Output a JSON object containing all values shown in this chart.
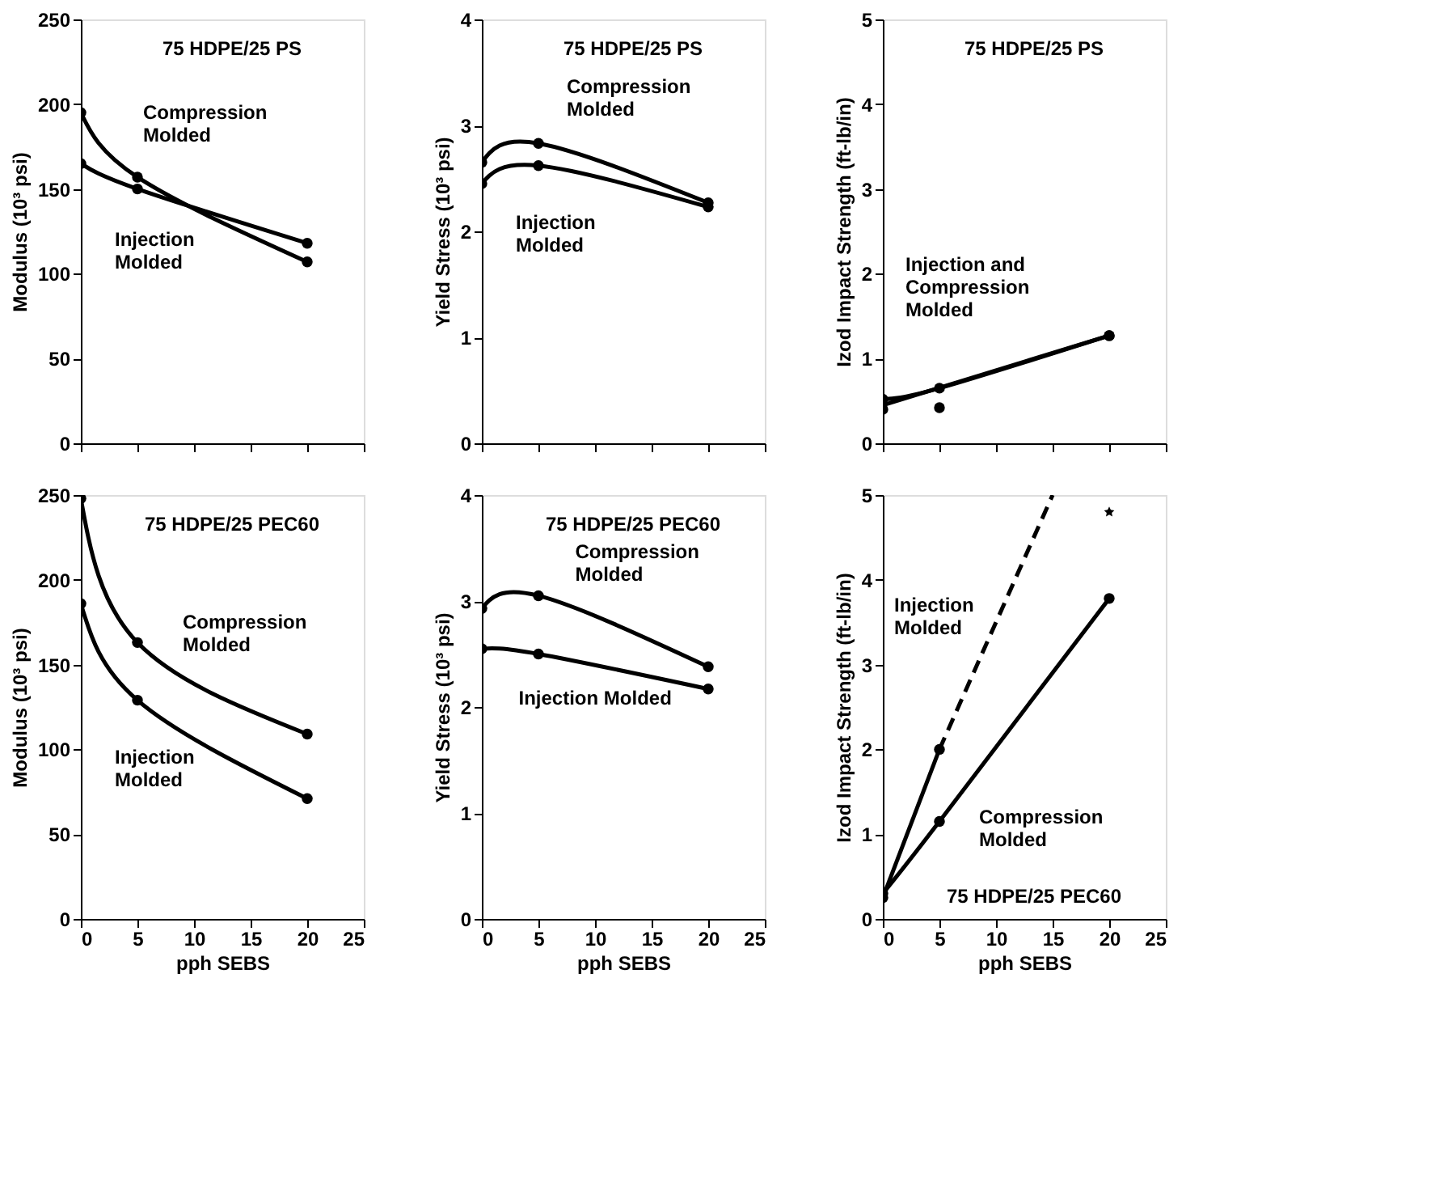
{
  "chart_data": [
    {
      "type": "line",
      "title": "75 HDPE/25 PS",
      "ylabel": "Modulus (10³ psi)",
      "xlim": [
        0,
        25
      ],
      "xticks": [
        0,
        5,
        10,
        15,
        20,
        25
      ],
      "ylim": [
        0,
        250
      ],
      "yticks": [
        0,
        50,
        100,
        150,
        200,
        250
      ],
      "tick_labels": "y",
      "grid": false,
      "marker": "circle",
      "line_style": "solid",
      "series": [
        {
          "color": "#000000",
          "x": [
            0,
            5,
            20
          ],
          "values": [
            195,
            157,
            107
          ]
        },
        {
          "color": "#000000",
          "x": [
            0,
            5,
            20
          ],
          "values": [
            165,
            150,
            118
          ]
        }
      ],
      "annotations": [
        "Compression\nMolded",
        "Injection\nMolded"
      ]
    },
    {
      "type": "line",
      "title": "75 HDPE/25 PS",
      "ylabel": "Yield Stress (10³ psi)",
      "xlim": [
        0,
        25
      ],
      "xticks": [
        0,
        5,
        10,
        15,
        20,
        25
      ],
      "ylim": [
        0,
        4
      ],
      "yticks": [
        0,
        1,
        2,
        3,
        4
      ],
      "tick_labels": "y",
      "grid": false,
      "marker": "circle",
      "line_style": "solid",
      "series": [
        {
          "color": "#000000",
          "x": [
            0,
            5,
            20
          ],
          "values": [
            2.65,
            2.83,
            2.27
          ]
        },
        {
          "color": "#000000",
          "x": [
            0,
            5,
            20
          ],
          "values": [
            2.45,
            2.62,
            2.23
          ]
        }
      ],
      "annotations": [
        "Compression\nMolded",
        "Injection\nMolded"
      ]
    },
    {
      "type": "line",
      "title": "75 HDPE/25 PS",
      "ylabel": "Izod Impact Strength (ft-lb/in)",
      "xlim": [
        0,
        25
      ],
      "xticks": [
        0,
        5,
        10,
        15,
        20,
        25
      ],
      "ylim": [
        0,
        5
      ],
      "yticks": [
        0,
        1,
        2,
        3,
        4,
        5
      ],
      "tick_labels": "y",
      "grid": false,
      "marker": "circle",
      "line_style": "solid",
      "series": [
        {
          "color": "#000000",
          "x": [
            0,
            5,
            20
          ],
          "values": [
            0.52,
            0.65,
            1.27
          ]
        },
        {
          "type": "scatter",
          "color": "#000000",
          "x": [
            0,
            5,
            20
          ],
          "values": [
            0.4,
            0.42,
            1.27
          ]
        },
        {
          "color": "#000000",
          "marker": "none",
          "x": [
            0,
            20
          ],
          "values": [
            0.45,
            1.27
          ]
        }
      ],
      "annotations": [
        "Injection and\nCompression\nMolded"
      ]
    },
    {
      "type": "line",
      "title": "75 HDPE/25 PEC60",
      "xlabel": "pph SEBS",
      "ylabel": "Modulus (10³ psi)",
      "xlim": [
        0,
        25
      ],
      "xticks": [
        0,
        5,
        10,
        15,
        20,
        25
      ],
      "ylim": [
        0,
        250
      ],
      "yticks": [
        0,
        50,
        100,
        150,
        200,
        250
      ],
      "grid": false,
      "marker": "circle",
      "line_style": "solid",
      "series": [
        {
          "color": "#000000",
          "x": [
            0,
            5,
            20
          ],
          "values": [
            248,
            163,
            109
          ]
        },
        {
          "color": "#000000",
          "x": [
            0,
            5,
            20
          ],
          "values": [
            186,
            129,
            71
          ]
        }
      ],
      "annotations": [
        "Compression\nMolded",
        "Injection\nMolded"
      ]
    },
    {
      "type": "line",
      "title": "75 HDPE/25 PEC60",
      "xlabel": "pph SEBS",
      "ylabel": "Yield Stress (10³ psi)",
      "xlim": [
        0,
        25
      ],
      "xticks": [
        0,
        5,
        10,
        15,
        20,
        25
      ],
      "ylim": [
        0,
        4
      ],
      "yticks": [
        0,
        1,
        2,
        3,
        4
      ],
      "grid": false,
      "marker": "circle",
      "line_style": "solid",
      "series": [
        {
          "color": "#000000",
          "x": [
            0,
            5,
            20
          ],
          "values": [
            2.93,
            3.05,
            2.38
          ]
        },
        {
          "color": "#000000",
          "x": [
            0,
            5,
            20
          ],
          "values": [
            2.55,
            2.5,
            2.17
          ]
        }
      ],
      "annotations": [
        "Compression\nMolded",
        "Injection Molded"
      ]
    },
    {
      "type": "line",
      "title": "75 HDPE/25 PEC60",
      "xlabel": "pph SEBS",
      "ylabel": "Izod Impact Strength (ft-lb/in)",
      "xlim": [
        0,
        25
      ],
      "xticks": [
        0,
        5,
        10,
        15,
        20,
        25
      ],
      "ylim": [
        0,
        5
      ],
      "yticks": [
        0,
        1,
        2,
        3,
        4,
        5
      ],
      "grid": false,
      "marker": "circle",
      "line_style": "solid",
      "series": [
        {
          "color": "#000000",
          "x": [
            0,
            5
          ],
          "values": [
            0.25,
            2
          ]
        },
        {
          "color": "#000000",
          "marker": "none",
          "line_style": "dashed",
          "x": [
            5,
            15
          ],
          "values": [
            2,
            5
          ]
        },
        {
          "type": "scatter",
          "color": "#000000",
          "marker": "star",
          "x": [
            20
          ],
          "values": [
            4.8
          ]
        },
        {
          "color": "#000000",
          "x": [
            0,
            5,
            20
          ],
          "values": [
            0.3,
            1.15,
            3.78
          ]
        }
      ],
      "annotations": [
        "Injection\nMolded",
        "Compression\nMolded"
      ]
    }
  ]
}
